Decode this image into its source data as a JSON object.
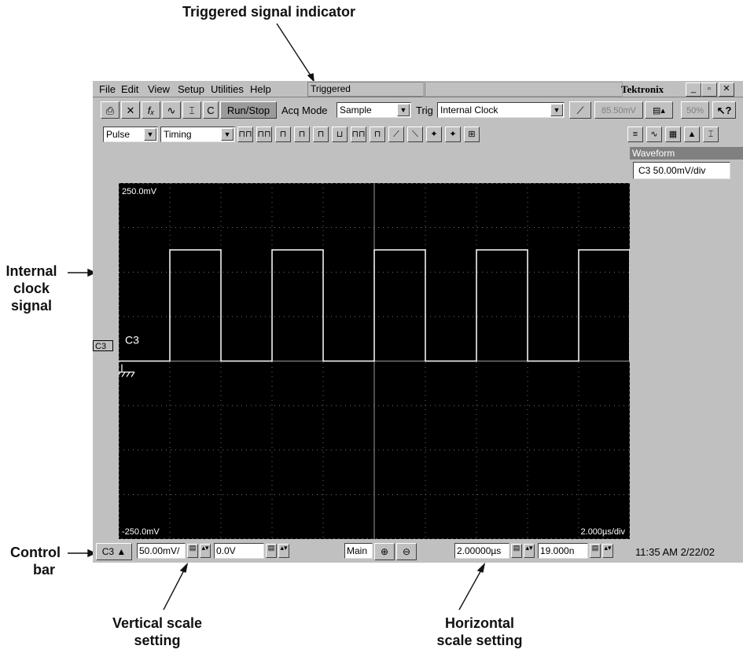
{
  "callouts": {
    "triggered": "Triggered signal indicator",
    "internal_clock": [
      "Internal",
      "clock",
      "signal"
    ],
    "control_bar": [
      "Control",
      "bar"
    ],
    "vertical": [
      "Vertical scale",
      "setting"
    ],
    "horizontal": [
      "Horizontal",
      "scale setting"
    ]
  },
  "menu": {
    "file": "File",
    "edit": "Edit",
    "view": "View",
    "setup": "Setup",
    "utilities": "Utilities",
    "help": "Help",
    "status": "Triggered",
    "brand": "Tektronix",
    "win_min": "_",
    "win_max": "▫",
    "win_close": "✕"
  },
  "toolbar": {
    "runstop": "Run/Stop",
    "acq_mode_label": "Acq Mode",
    "acq_mode_value": "Sample",
    "trig_label": "Trig",
    "trig_source": "Internal Clock",
    "trig_level": "85.50mV",
    "fifty_pct": "50%",
    "c_button": "C"
  },
  "measure": {
    "category": "Pulse",
    "subcategory": "Timing"
  },
  "right_panel": {
    "header": "Waveform",
    "item": "C3 50.00mV/div"
  },
  "display": {
    "top_label": "250.0mV",
    "bottom_label": "-250.0mV",
    "time_div": "2.000µs/div",
    "channel_label": "C3",
    "marker_label": "C3",
    "colors": {
      "background": "#000000",
      "trace": "#ffffff",
      "grid": "#9a9a9a"
    }
  },
  "signal": {
    "type": "square wave",
    "low_level_divs": -0.0,
    "high_level_divs": 2.5,
    "period_divs": 2.0,
    "duty": 0.5,
    "first_rise_divs": 1.0
  },
  "control_bar": {
    "channel": "C3",
    "vscale": "50.00mV/",
    "offset": "0.0V",
    "timebase": "Main",
    "hscale": "2.00000µs",
    "hpos": "19.000n",
    "clock": "11:35 AM 2/22/02"
  }
}
